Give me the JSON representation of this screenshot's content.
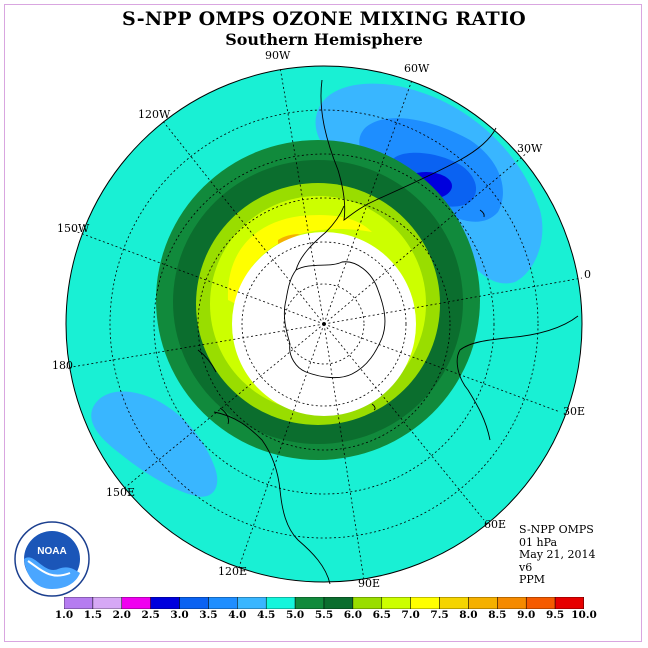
{
  "title": "S-NPP OMPS OZONE MIXING RATIO",
  "subtitle": "Southern Hemisphere",
  "longitude_labels": [
    "90W",
    "60W",
    "120W",
    "30W",
    "150W",
    "0",
    "180",
    "30E",
    "150E",
    "60E",
    "120E",
    "90E"
  ],
  "info": {
    "instrument": "S-NPP OMPS",
    "level": "01 hPa",
    "date": "May 21, 2014",
    "version": "v6",
    "units": "PPM"
  },
  "logo": {
    "text": "NOAA"
  },
  "colorbar": {
    "ticks": [
      "1.0",
      "1.5",
      "2.0",
      "2.5",
      "3.0",
      "3.5",
      "4.0",
      "4.5",
      "5.0",
      "5.5",
      "6.0",
      "6.5",
      "7.0",
      "7.5",
      "8.0",
      "8.5",
      "9.0",
      "9.5",
      "10.0"
    ],
    "colors": [
      "#b57cf0",
      "#d6a8f5",
      "#f000f0",
      "#0000dd",
      "#0a62f2",
      "#1e8eff",
      "#39b6ff",
      "#14f5dc",
      "#118a3c",
      "#0b6e2e",
      "#99dd00",
      "#ccff00",
      "#ffff00",
      "#f5d400",
      "#f5b000",
      "#f58a00",
      "#f55a00",
      "#e60000",
      "#8a5030"
    ]
  },
  "legend_colors": {
    "background": "#19f0d4",
    "light_blue": "#39b6ff",
    "blue": "#1e8eff",
    "mid_blue": "#0a62f2",
    "dark_blue": "#0000dd",
    "green_light": "#118a3c",
    "green_dark": "#0b6e2e",
    "yellow_green": "#99dd00",
    "lime": "#ccff00",
    "yellow": "#ffff00",
    "orange": "#f5b000"
  }
}
